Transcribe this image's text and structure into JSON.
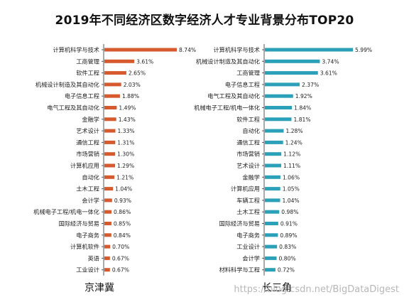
{
  "title": "2019年不同经济区数字经济人才专业背景分布TOP20",
  "watermark": "https://blog.csdn.net/BigDataDigest",
  "colors": {
    "left": "#d65a2e",
    "right": "#2aa1b8",
    "axis": "#555555"
  },
  "chart_data": [
    {
      "type": "bar",
      "orientation": "horizontal",
      "region_label": "京津冀",
      "categories": [
        "计算机科学与技术",
        "工商管理",
        "软件工程",
        "机械设计制造及其自动化",
        "电子信息工程",
        "电气工程及其自动化",
        "金融学",
        "艺术设计",
        "通信工程",
        "市场营销",
        "计算机应用",
        "自动化",
        "土木工程",
        "会计学",
        "机械电子工程/机电一体化",
        "国际经济与贸易",
        "电子商务",
        "计算机软件",
        "英语",
        "工业设计"
      ],
      "values": [
        8.74,
        3.61,
        2.65,
        2.03,
        1.88,
        1.49,
        1.43,
        1.33,
        1.31,
        1.3,
        1.29,
        1.21,
        1.04,
        0.93,
        0.86,
        0.85,
        0.84,
        0.7,
        0.67,
        0.67
      ],
      "value_labels": [
        "8.74%",
        "3.61%",
        "2.65%",
        "2.03%",
        "1.88%",
        "1.49%",
        "1.43%",
        "1.33%",
        "1.31%",
        "1.30%",
        "1.29%",
        "1.21%",
        "1.04%",
        "0.93%",
        "0.86%",
        "0.85%",
        "0.84%",
        "0.70%",
        "0.67%",
        "0.67%"
      ],
      "unit": "%",
      "color": "#d65a2e",
      "xlim": [
        0,
        8.74
      ]
    },
    {
      "type": "bar",
      "orientation": "horizontal",
      "region_label": "长三角",
      "categories": [
        "计算机科学与技术",
        "机械设计制造及其自动化",
        "工商管理",
        "电子信息工程",
        "电气工程及其自动化",
        "机械电子工程/机电一体化",
        "软件工程",
        "自动化",
        "通信工程",
        "市场营销",
        "艺术设计",
        "金融学",
        "计算机应用",
        "车辆工程",
        "土木工程",
        "国际经济与贸易",
        "电子商务",
        "工业设计",
        "会计学",
        "材料科学与工程"
      ],
      "values": [
        5.99,
        3.74,
        3.61,
        2.37,
        1.92,
        1.84,
        1.81,
        1.28,
        1.24,
        1.12,
        1.11,
        1.06,
        1.05,
        1.04,
        0.98,
        0.91,
        0.89,
        0.83,
        0.8,
        0.72
      ],
      "value_labels": [
        "5.99%",
        "3.74%",
        "3.61%",
        "2.37%",
        "1.92%",
        "1.84%",
        "1.81%",
        "1.28%",
        "1.24%",
        "1.12%",
        "1.11%",
        "1.06%",
        "1.05%",
        "1.04%",
        "0.98%",
        "0.91%",
        "0.89%",
        "0.83%",
        "0.80%",
        "0.72%"
      ],
      "unit": "%",
      "color": "#2aa1b8",
      "xlim": [
        0,
        5.99
      ]
    }
  ]
}
